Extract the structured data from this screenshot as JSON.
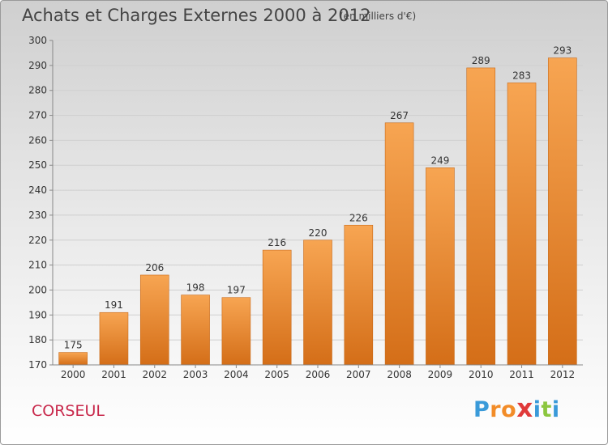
{
  "title": "Achats et Charges Externes 2000 à 2012",
  "subtitle": "(en milliers d'€)",
  "commune": "CORSEUL",
  "brand": {
    "letters": [
      "P",
      "r",
      "o",
      "x",
      "i",
      "t",
      "i"
    ],
    "colors": [
      "#3a9ad9",
      "#f28c28",
      "#f28c28",
      "#e03a3a",
      "#3a9ad9",
      "#8cc63f",
      "#3a9ad9"
    ]
  },
  "colors": {
    "bar_top": "#f7a552",
    "bar_bottom": "#d46e18",
    "grid": "#cfcfcf",
    "axis": "#888888",
    "text": "#333333"
  },
  "chart_data": {
    "type": "bar",
    "categories": [
      "2000",
      "2001",
      "2002",
      "2003",
      "2004",
      "2005",
      "2006",
      "2007",
      "2008",
      "2009",
      "2010",
      "2011",
      "2012"
    ],
    "values": [
      175,
      191,
      206,
      198,
      197,
      216,
      220,
      226,
      267,
      249,
      289,
      283,
      293
    ],
    "ylim": [
      170,
      300
    ],
    "yticks": [
      170,
      180,
      190,
      200,
      210,
      220,
      230,
      240,
      250,
      260,
      270,
      280,
      290,
      300
    ],
    "grid": true,
    "data_labels": true
  }
}
